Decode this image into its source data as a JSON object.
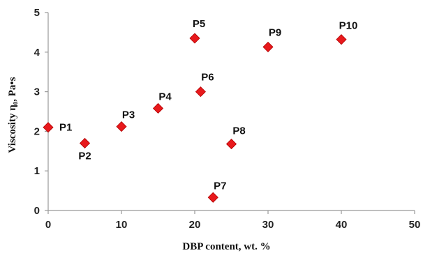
{
  "chart_data": {
    "type": "scatter",
    "title": "",
    "xlabel": "DBP content, wt. %",
    "ylabel": "Viscosity η₀, Pa•s",
    "xlim": [
      0,
      50
    ],
    "ylim": [
      0,
      5
    ],
    "xticks": [
      0,
      10,
      20,
      30,
      40,
      50
    ],
    "yticks": [
      0,
      1,
      2,
      3,
      4,
      5
    ],
    "grid": false,
    "marker": "diamond",
    "marker_color": "#e8191c",
    "points": [
      {
        "label": "P1",
        "x": 0,
        "y": 2.1
      },
      {
        "label": "P2",
        "x": 5,
        "y": 1.7
      },
      {
        "label": "P3",
        "x": 10,
        "y": 2.12
      },
      {
        "label": "P4",
        "x": 15,
        "y": 2.58
      },
      {
        "label": "P5",
        "x": 20,
        "y": 4.35
      },
      {
        "label": "P6",
        "x": 20.8,
        "y": 3.0
      },
      {
        "label": "P7",
        "x": 22.5,
        "y": 0.33
      },
      {
        "label": "P8",
        "x": 25,
        "y": 1.68
      },
      {
        "label": "P9",
        "x": 30,
        "y": 4.13
      },
      {
        "label": "P10",
        "x": 40,
        "y": 4.32
      }
    ]
  }
}
